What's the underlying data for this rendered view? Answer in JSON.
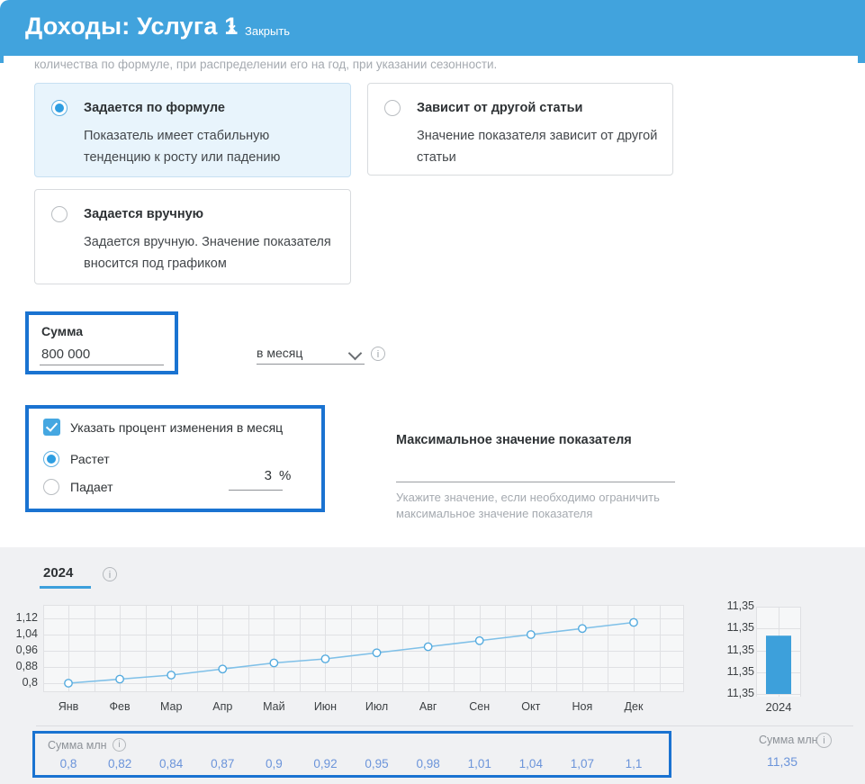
{
  "header": {
    "title": "Доходы: Услуга 1",
    "close_icon": "×",
    "close_label": "Закрыть"
  },
  "intro_text": "количества по формуле, при распределении его на год, при указании сезонности.",
  "method_options": [
    {
      "title": "Задается по формуле",
      "description": "Показатель имеет стабильную тенденцию к росту или падению",
      "selected": true
    },
    {
      "title": "Зависит от другой статьи",
      "description": "Значение показателя зависит от другой статьи",
      "selected": false
    },
    {
      "title": "Задается вручную",
      "description": "Задается вручную. Значение показателя вносится под графиком",
      "selected": false
    }
  ],
  "sum_field": {
    "label": "Сумма",
    "value": "800 000"
  },
  "period_select": {
    "value": "в месяц"
  },
  "percent_section": {
    "checkbox_label": "Указать процент изменения в месяц",
    "checked": true,
    "direction_options": [
      {
        "label": "Растет",
        "selected": true
      },
      {
        "label": "Падает",
        "selected": false
      }
    ],
    "percent_value": "3",
    "percent_suffix": "%"
  },
  "max_value_field": {
    "label": "Максимальное значение показателя",
    "value": "",
    "helper_text": "Укажите значение, если необходимо ограничить максимальное значение показателя"
  },
  "year_tab": {
    "label": "2024"
  },
  "chart_data": [
    {
      "type": "line",
      "x": [
        "Янв",
        "Фев",
        "Мар",
        "Апр",
        "Май",
        "Июн",
        "Июл",
        "Авг",
        "Сен",
        "Окт",
        "Ноя",
        "Дек"
      ],
      "values": [
        0.8,
        0.82,
        0.84,
        0.87,
        0.9,
        0.92,
        0.95,
        0.98,
        1.01,
        1.04,
        1.07,
        1.1
      ],
      "ytick_values": [
        1.12,
        1.04,
        0.96,
        0.88,
        0.8
      ],
      "ytick_labels": [
        "1,12",
        "1,04",
        "0,96",
        "0,88",
        "0,8"
      ],
      "ylim": [
        0.7556,
        1.1867
      ],
      "grid": true,
      "line_color": "#7fc0e8",
      "marker_stroke": "#55abdf"
    },
    {
      "type": "bar",
      "categories": [
        "2024"
      ],
      "values": [
        11.35
      ],
      "ytick_labels": [
        "11,35",
        "11,35",
        "11,35",
        "11,35",
        "11,35"
      ],
      "ylim": [
        0,
        17
      ],
      "grid": true,
      "bar_color": "#3da0db"
    }
  ],
  "monthly_row": {
    "label": "Сумма млн",
    "values": [
      "0,8",
      "0,82",
      "0,84",
      "0,87",
      "0,9",
      "0,92",
      "0,95",
      "0,98",
      "1,01",
      "1,04",
      "1,07",
      "1,1"
    ]
  },
  "yearly_summary": {
    "label": "Сумма млн",
    "value": "11,35",
    "year": "2024"
  },
  "colors": {
    "header_blue": "#41a3dd",
    "highlight_border": "#1a73d1",
    "accent_blue": "#3da0dc",
    "values_text_blue": "#6b94da"
  }
}
